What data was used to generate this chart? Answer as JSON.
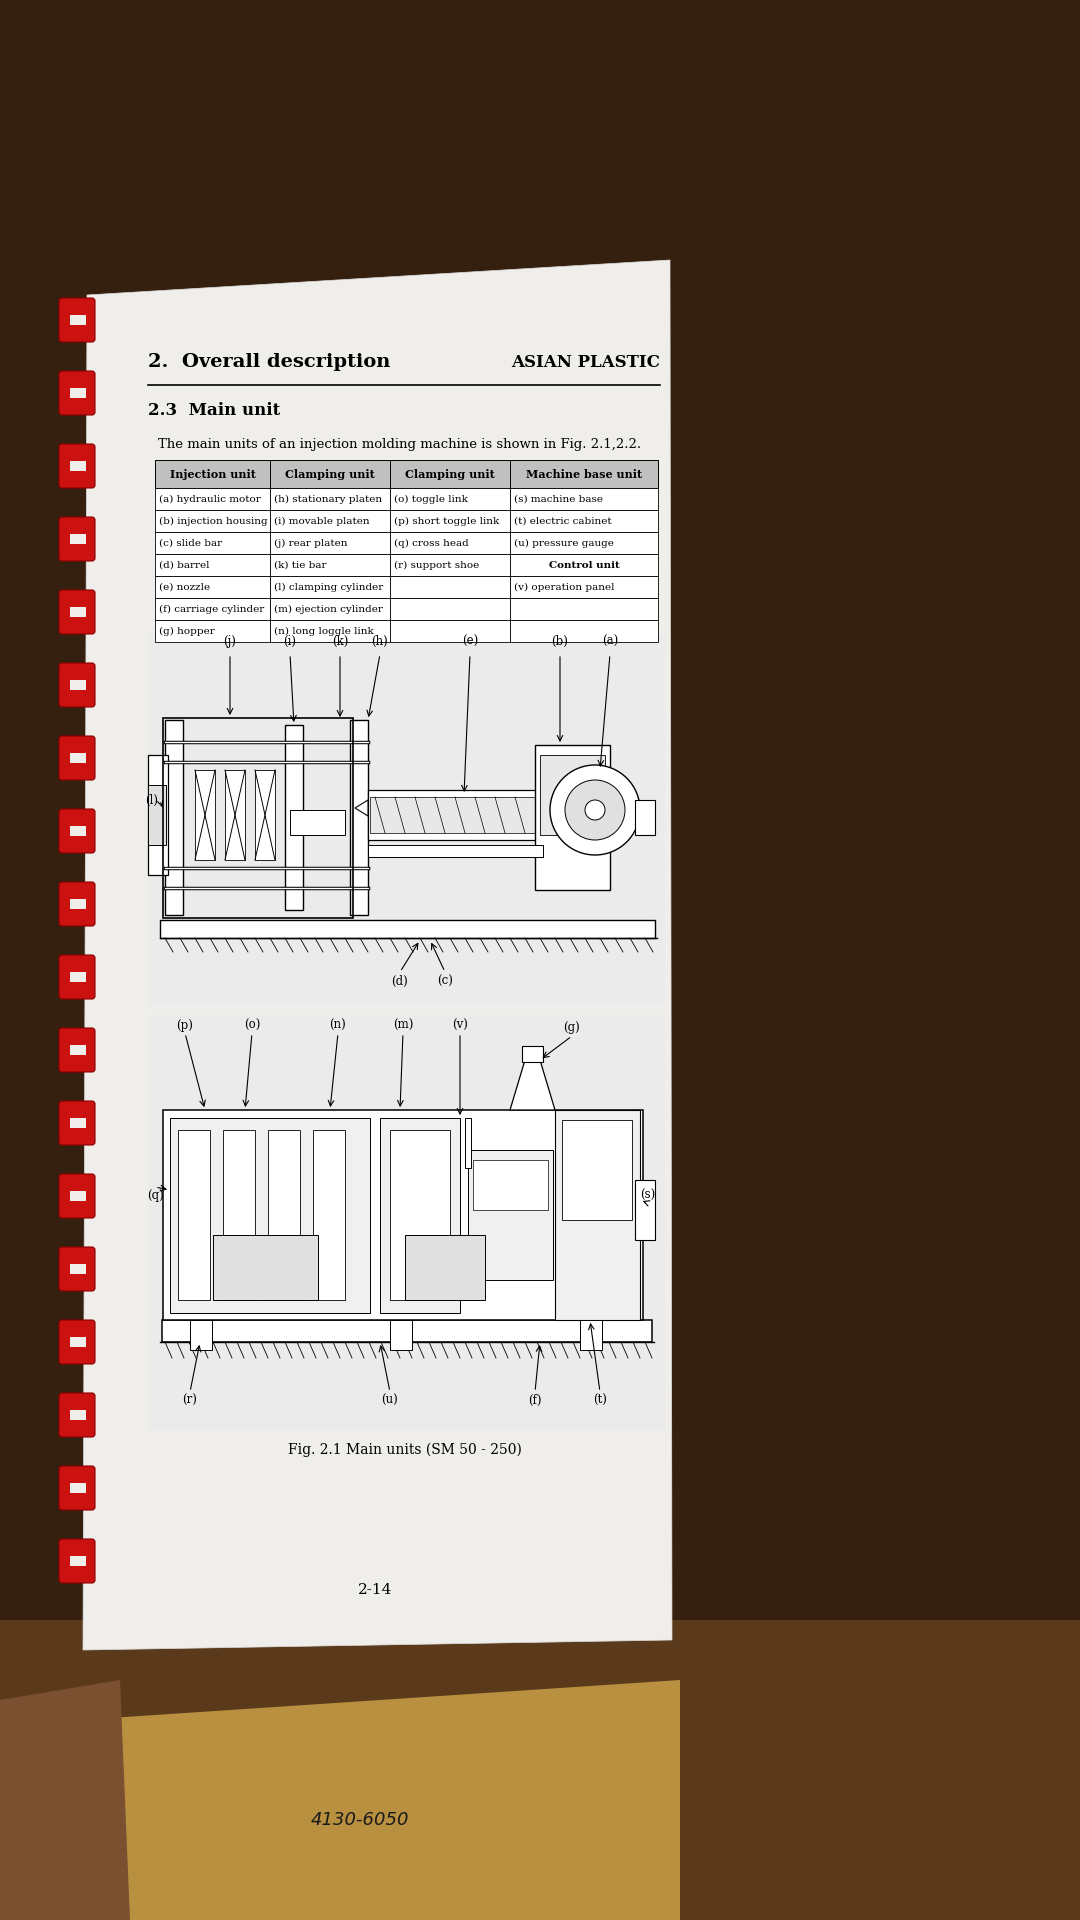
{
  "bg_top_color": "#3a2510",
  "bg_mid_color": "#4a3018",
  "bg_bot_color": "#6a5030",
  "page_bg": "#f0eeea",
  "cardboard_color": "#c8a84a",
  "header_section": "2.  Overall description",
  "header_right": "ASIAN PLASTIC",
  "section_title": "2.3  Main unit",
  "intro_text": "The main units of an injection molding machine is shown in Fig. 2.1,2.2.",
  "table_headers": [
    "Injection unit",
    "Clamping unit",
    "Clamping unit",
    "Machine base unit"
  ],
  "table_col1": [
    "(a) hydraulic motor",
    "(b) injection housing",
    "(c) slide bar",
    "(d) barrel",
    "(e) nozzle",
    "(f) carriage cylinder",
    "(g) hopper"
  ],
  "table_col2": [
    "(h) stationary platen",
    "(i) movable platen",
    "(j) rear platen",
    "(k) tie bar",
    "(l) clamping cylinder",
    "(m) ejection cylinder",
    "(n) long loggle link"
  ],
  "table_col3": [
    "(o) toggle link",
    "(p) short toggle link",
    "(q) cross head",
    "(r) support shoe",
    "",
    "",
    ""
  ],
  "table_col4": [
    "(s) machine base",
    "(t) electric cabinet",
    "(u) pressure gauge",
    "Control unit",
    "(v) operation panel",
    "",
    ""
  ],
  "fig_caption": "Fig. 2.1 Main units (SM 50 - 250)",
  "page_number": "2-14",
  "box_label_4130": "4130-6050",
  "red_color": "#cc1111",
  "gray_header": "#c0c0c0"
}
